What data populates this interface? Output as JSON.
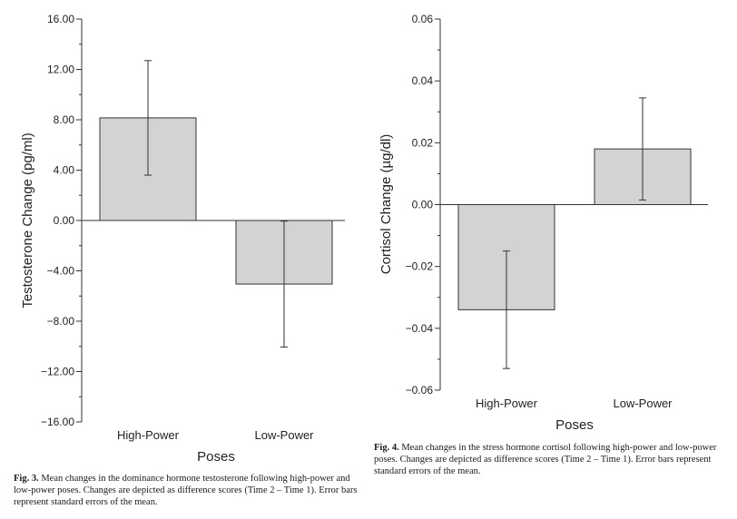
{
  "chart_data": [
    {
      "type": "bar",
      "categories": [
        "High-Power",
        "Low-Power"
      ],
      "values": [
        8.15,
        -5.05
      ],
      "error": [
        4.55,
        5.0
      ],
      "xlabel": "Poses",
      "ylabel": "Testosterone Change (pg/ml)",
      "yticks": [
        "16.00",
        "12.00",
        "8.00",
        "4.00",
        "0.00",
        "-4.00",
        "-8.00",
        "-12.00",
        "-16.00"
      ],
      "ylim": [
        -16,
        16
      ],
      "grid": false,
      "bar_color": "#d3d3d3"
    },
    {
      "type": "bar",
      "categories": [
        "High-Power",
        "Low-Power"
      ],
      "values": [
        -0.034,
        0.018
      ],
      "error": [
        0.019,
        0.0165
      ],
      "xlabel": "Poses",
      "ylabel": "Cortisol Change (µg/dl)",
      "yticks": [
        "0.06",
        "0.04",
        "0.02",
        "0.00",
        "-0.02",
        "-0.04",
        "-0.06"
      ],
      "ylim": [
        -0.06,
        0.06
      ],
      "grid": false,
      "bar_color": "#d3d3d3"
    }
  ],
  "captions": {
    "fig3": {
      "label": "Fig. 3.",
      "text": "Mean changes in the dominance hormone testosterone following high-power and low-power poses. Changes are depicted as difference scores (Time 2 – Time 1). Error bars represent standard errors of the mean."
    },
    "fig4": {
      "label": "Fig. 4.",
      "text": "Mean changes in the stress hormone cortisol following high-power and low-power poses. Changes are depicted as difference scores (Time 2 – Time 1). Error bars represent standard errors of the mean."
    }
  }
}
